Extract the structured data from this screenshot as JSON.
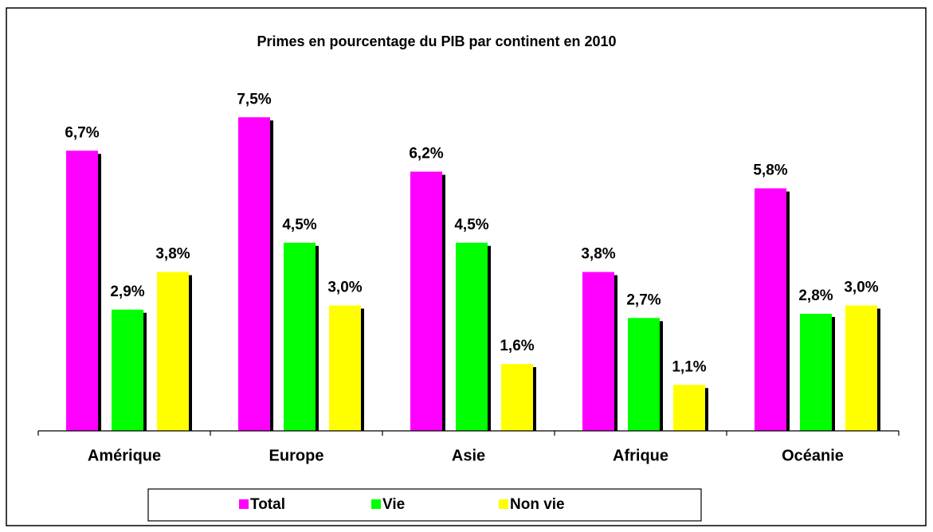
{
  "chart_data": {
    "type": "bar",
    "title": "Primes  en pourcentage du PIB par continent en 2010",
    "categories": [
      "Amérique",
      "Europe",
      "Asie",
      "Afrique",
      "Océanie"
    ],
    "series": [
      {
        "name": "Total",
        "color": "#ff00ff",
        "values": [
          6.7,
          7.5,
          6.2,
          3.8,
          5.8
        ],
        "value_labels": [
          "6,7%",
          "7,5%",
          "6,2%",
          "3,8%",
          "5,8%"
        ]
      },
      {
        "name": "Vie",
        "color": "#00ff00",
        "values": [
          2.9,
          4.5,
          4.5,
          2.7,
          2.8
        ],
        "value_labels": [
          "2,9%",
          "4,5%",
          "4,5%",
          "2,7%",
          "2,8%"
        ]
      },
      {
        "name": "Non vie",
        "color": "#ffff00",
        "values": [
          3.8,
          3.0,
          1.6,
          1.1,
          3.0
        ],
        "value_labels": [
          "3,8%",
          "3,0%",
          "1,6%",
          "1,1%",
          "3,0%"
        ]
      }
    ],
    "ylim": [
      0,
      8
    ],
    "legend": "bottom"
  }
}
